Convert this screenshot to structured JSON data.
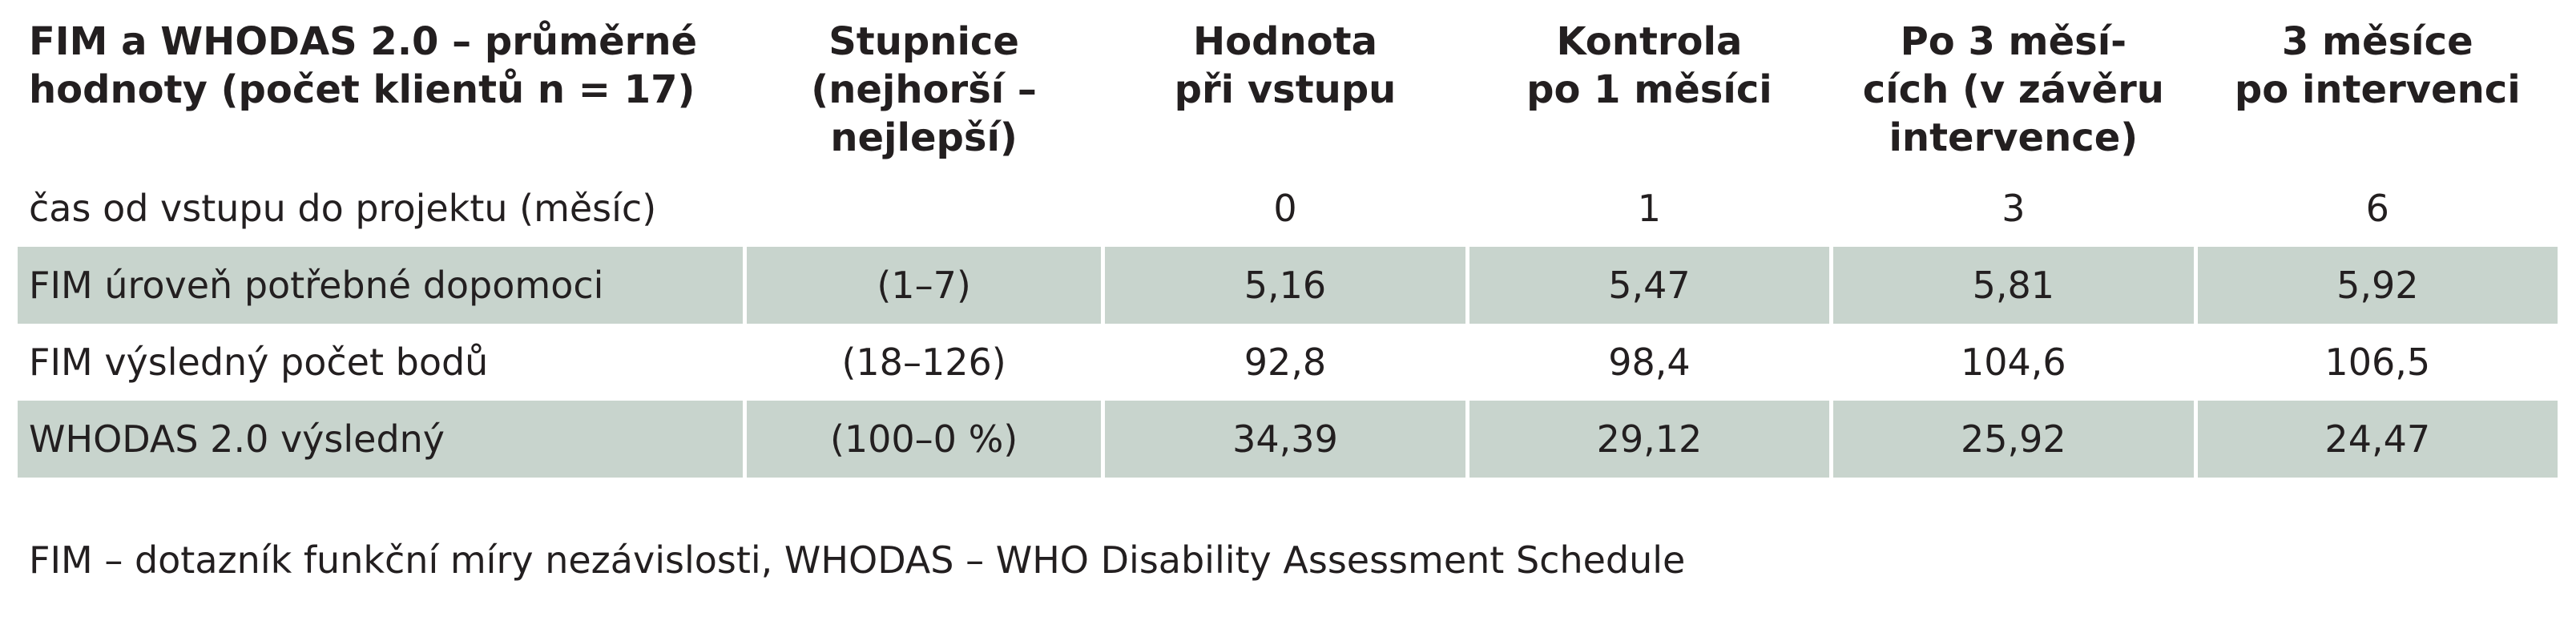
{
  "table": {
    "header": [
      "FIM a WHODAS 2.0 – průměrné\nhodnoty (počet klientů n = 17)",
      "Stupnice\n(nejhorší –\nnejlepší)",
      "Hodnota\npři vstupu",
      "Kontrola\npo 1 měsíci",
      "Po 3 měsí-\ncích (v závěru\nintervence)",
      "3 měsíce\npo intervenci"
    ],
    "rows": [
      [
        "čas od vstupu do projektu (měsíc)",
        "",
        "0",
        "1",
        "3",
        "6"
      ],
      [
        "FIM úroveň potřebné dopomoci",
        "(1–7)",
        "5,16",
        "5,47",
        "5,81",
        "5,92"
      ],
      [
        "FIM výsledný počet bodů",
        "(18–126)",
        "92,8",
        "98,4",
        "104,6",
        "106,5"
      ],
      [
        "WHODAS 2.0 výsledný",
        "(100–0 %)",
        "34,39",
        "29,12",
        "25,92",
        "24,47"
      ]
    ],
    "footnote": "FIM – dotazník funkční míry nezávislosti, WHODAS – WHO Disability Assessment Schedule"
  }
}
